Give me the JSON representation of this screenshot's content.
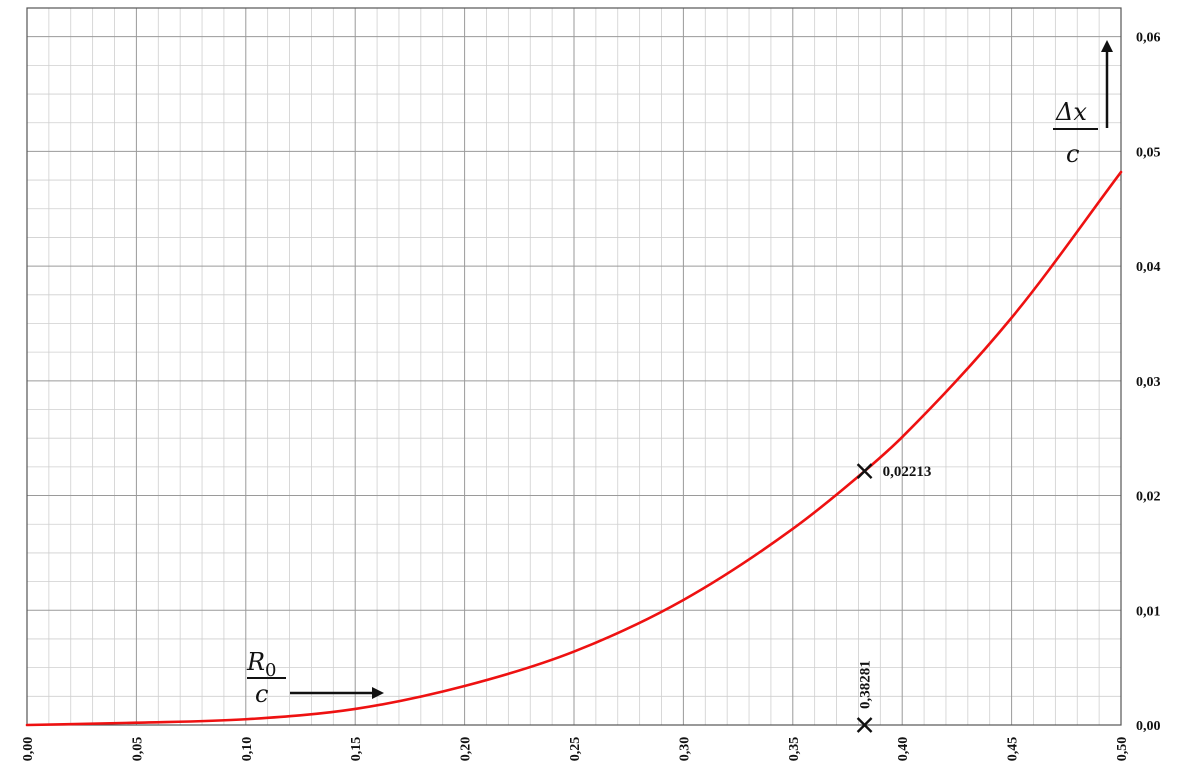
{
  "chart_data": {
    "type": "line",
    "x_ticks": [
      "0,00",
      "0,05",
      "0,10",
      "0,15",
      "0,20",
      "0,25",
      "0,30",
      "0,35",
      "0,40",
      "0,45",
      "0,50"
    ],
    "y_ticks": [
      "0,00",
      "0,01",
      "0,02",
      "0,03",
      "0,04",
      "0,05",
      "0,06"
    ],
    "xlim": [
      0,
      0.5
    ],
    "ylim": [
      0,
      0.0625
    ],
    "y_axis_side": "right",
    "grid": true,
    "series": [
      {
        "color": "#ee1111",
        "x": [
          0.0,
          0.05,
          0.1,
          0.15,
          0.2,
          0.25,
          0.3,
          0.35,
          0.38281,
          0.4,
          0.45,
          0.5
        ],
        "y": [
          0.0,
          0.0002,
          0.0005,
          0.0014,
          0.0034,
          0.0064,
          0.0109,
          0.0171,
          0.02213,
          0.0251,
          0.0355,
          0.0482
        ]
      }
    ],
    "x_axis_label": {
      "numerator": "R",
      "subscript": "0",
      "denominator": "c"
    },
    "y_axis_label": {
      "numerator": "Δx",
      "denominator": "c"
    },
    "annotations": [
      {
        "x": 0.38281,
        "y": 0.02213,
        "text": "0,02213",
        "marker": "×"
      },
      {
        "x": 0.38281,
        "y": 0.0,
        "text": "0,38281",
        "marker": "×"
      }
    ]
  }
}
